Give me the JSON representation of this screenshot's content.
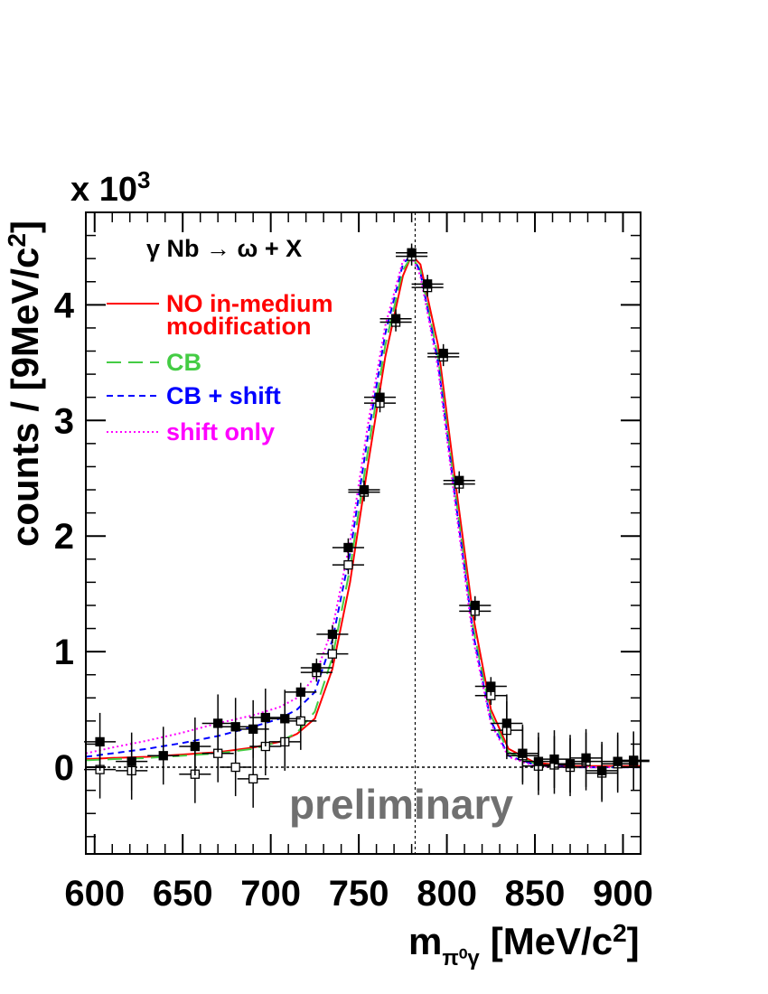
{
  "chart_data": {
    "type": "line",
    "scale_label": "x 10",
    "scale_exponent": "3",
    "ylabel": "counts / [9MeV/c",
    "ylabel_sup": "2",
    "ylabel_end": "]",
    "xlabel_main": "m",
    "xlabel_sub": "π⁰γ",
    "xlabel_units": "[MeV/c",
    "xlabel_sup": "2",
    "xlabel_end": "]",
    "reaction_label": "γ Nb → ω + X",
    "watermark": "preliminary",
    "xlim": [
      595,
      910
    ],
    "ylim": [
      -0.75,
      4.8
    ],
    "x_ticks": [
      600,
      650,
      700,
      750,
      800,
      850,
      900
    ],
    "y_ticks": [
      0,
      1,
      2,
      3,
      4
    ],
    "omega_mass_line": 782,
    "zero_line": 0,
    "legend": [
      {
        "label_lines": [
          "NO in-medium",
          "modification"
        ],
        "color": "#ff0000",
        "style": "solid"
      },
      {
        "label_lines": [
          "CB"
        ],
        "color": "#44cc44",
        "style": "longdash"
      },
      {
        "label_lines": [
          "CB + shift"
        ],
        "color": "#0000ff",
        "style": "dash"
      },
      {
        "label_lines": [
          "shift only"
        ],
        "color": "#ff00ff",
        "style": "dot"
      }
    ],
    "series": [
      {
        "name": "NO in-medium modification",
        "color": "#ff0000",
        "style": "solid",
        "x": [
          595,
          610,
          630,
          650,
          670,
          690,
          705,
          715,
          725,
          735,
          745,
          755,
          765,
          775,
          780,
          785,
          795,
          805,
          815,
          825,
          835,
          850,
          870,
          910
        ],
        "y": [
          0.07,
          0.08,
          0.09,
          0.11,
          0.13,
          0.17,
          0.22,
          0.29,
          0.42,
          0.85,
          1.6,
          2.6,
          3.55,
          4.25,
          4.43,
          4.35,
          3.65,
          2.45,
          1.3,
          0.5,
          0.16,
          0.04,
          0.01,
          0.01
        ]
      },
      {
        "name": "CB",
        "color": "#44cc44",
        "style": "longdash",
        "x": [
          595,
          610,
          630,
          650,
          670,
          690,
          705,
          715,
          725,
          735,
          745,
          755,
          765,
          775,
          780,
          785,
          795,
          805,
          815,
          825,
          835,
          850,
          870,
          910
        ],
        "y": [
          0.06,
          0.07,
          0.08,
          0.1,
          0.12,
          0.16,
          0.22,
          0.3,
          0.48,
          0.95,
          1.72,
          2.72,
          3.65,
          4.3,
          4.42,
          4.3,
          3.55,
          2.35,
          1.2,
          0.45,
          0.13,
          0.03,
          0.0,
          0.0
        ]
      },
      {
        "name": "CB + shift",
        "color": "#0000ff",
        "style": "dash",
        "x": [
          595,
          610,
          630,
          650,
          670,
          690,
          705,
          715,
          725,
          735,
          745,
          755,
          765,
          775,
          780,
          785,
          795,
          805,
          815,
          825,
          835,
          850,
          870,
          910
        ],
        "y": [
          0.09,
          0.12,
          0.16,
          0.21,
          0.27,
          0.35,
          0.42,
          0.5,
          0.65,
          1.1,
          1.85,
          2.85,
          3.75,
          4.35,
          4.44,
          4.28,
          3.5,
          2.3,
          1.15,
          0.4,
          0.1,
          0.02,
          0.0,
          0.0
        ]
      },
      {
        "name": "shift only",
        "color": "#ff00ff",
        "style": "dot",
        "x": [
          595,
          610,
          630,
          650,
          670,
          690,
          705,
          715,
          725,
          735,
          745,
          755,
          765,
          775,
          780,
          785,
          795,
          805,
          815,
          825,
          835,
          850,
          870,
          910
        ],
        "y": [
          0.12,
          0.17,
          0.23,
          0.3,
          0.38,
          0.45,
          0.52,
          0.6,
          0.78,
          1.2,
          1.95,
          2.95,
          3.82,
          4.38,
          4.42,
          4.25,
          3.45,
          2.25,
          1.1,
          0.38,
          0.09,
          0.01,
          0.0,
          0.0
        ]
      }
    ],
    "data_filled": {
      "x": [
        603,
        621,
        639,
        657,
        670,
        680,
        690,
        697,
        708,
        717,
        726,
        735,
        744,
        753,
        762,
        771,
        780,
        789,
        798,
        807,
        816,
        825,
        834,
        843,
        852,
        861,
        870,
        879,
        888,
        897,
        906
      ],
      "y": [
        0.22,
        0.05,
        0.1,
        0.18,
        0.38,
        0.35,
        0.33,
        0.43,
        0.42,
        0.65,
        0.86,
        1.15,
        1.9,
        2.4,
        3.2,
        3.88,
        4.45,
        4.18,
        3.58,
        2.48,
        1.4,
        0.7,
        0.38,
        0.12,
        0.05,
        0.07,
        0.03,
        0.08,
        -0.03,
        0.05,
        0.06
      ]
    },
    "data_open": {
      "x": [
        603,
        621,
        657,
        670,
        680,
        690,
        697,
        708,
        717,
        726,
        735,
        744,
        753,
        762,
        771,
        780,
        789,
        798,
        807,
        816,
        825,
        834,
        843,
        852,
        861,
        870,
        879,
        888,
        897,
        906
      ],
      "y": [
        -0.02,
        -0.03,
        -0.06,
        0.12,
        0.0,
        -0.1,
        0.18,
        0.22,
        0.4,
        0.82,
        0.98,
        1.75,
        2.38,
        3.15,
        3.85,
        4.42,
        4.15,
        3.55,
        2.45,
        1.35,
        0.62,
        0.32,
        0.1,
        0.01,
        0.02,
        0.0,
        0.05,
        -0.05,
        0.03,
        0.05
      ]
    }
  }
}
